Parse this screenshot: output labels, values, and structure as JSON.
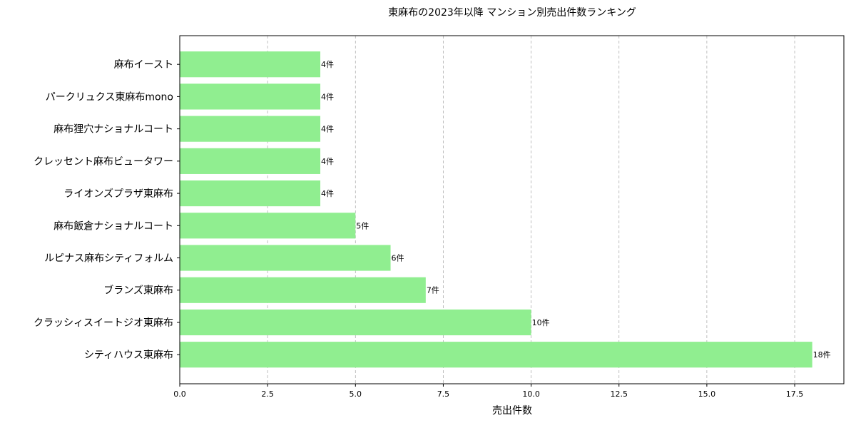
{
  "chart_data": {
    "type": "bar",
    "orientation": "horizontal",
    "title": "東麻布の2023年以降 マンション別売出件数ランキング",
    "xlabel": "売出件数",
    "ylabel": "",
    "categories": [
      "麻布イースト",
      "パークリュクス東麻布mono",
      "麻布狸穴ナショナルコート",
      "クレッセント麻布ビュータワー",
      "ライオンズプラザ東麻布",
      "麻布飯倉ナショナルコート",
      "ルピナス麻布シティフォルム",
      "ブランズ東麻布",
      "クラッシィスイートジオ東麻布",
      "シティハウス東麻布"
    ],
    "values": [
      4,
      4,
      4,
      4,
      4,
      5,
      6,
      7,
      10,
      18
    ],
    "data_labels": [
      "4件",
      "4件",
      "4件",
      "4件",
      "4件",
      "5件",
      "6件",
      "7件",
      "10件",
      "18件"
    ],
    "xlim": [
      0,
      18.9
    ],
    "xticks": [
      "0.0",
      "2.5",
      "5.0",
      "7.5",
      "10.0",
      "12.5",
      "15.0",
      "17.5"
    ],
    "xtick_values": [
      0,
      2.5,
      5,
      7.5,
      10,
      12.5,
      15,
      17.5
    ],
    "grid": "x dashed",
    "bar_color": "#90ee90"
  }
}
